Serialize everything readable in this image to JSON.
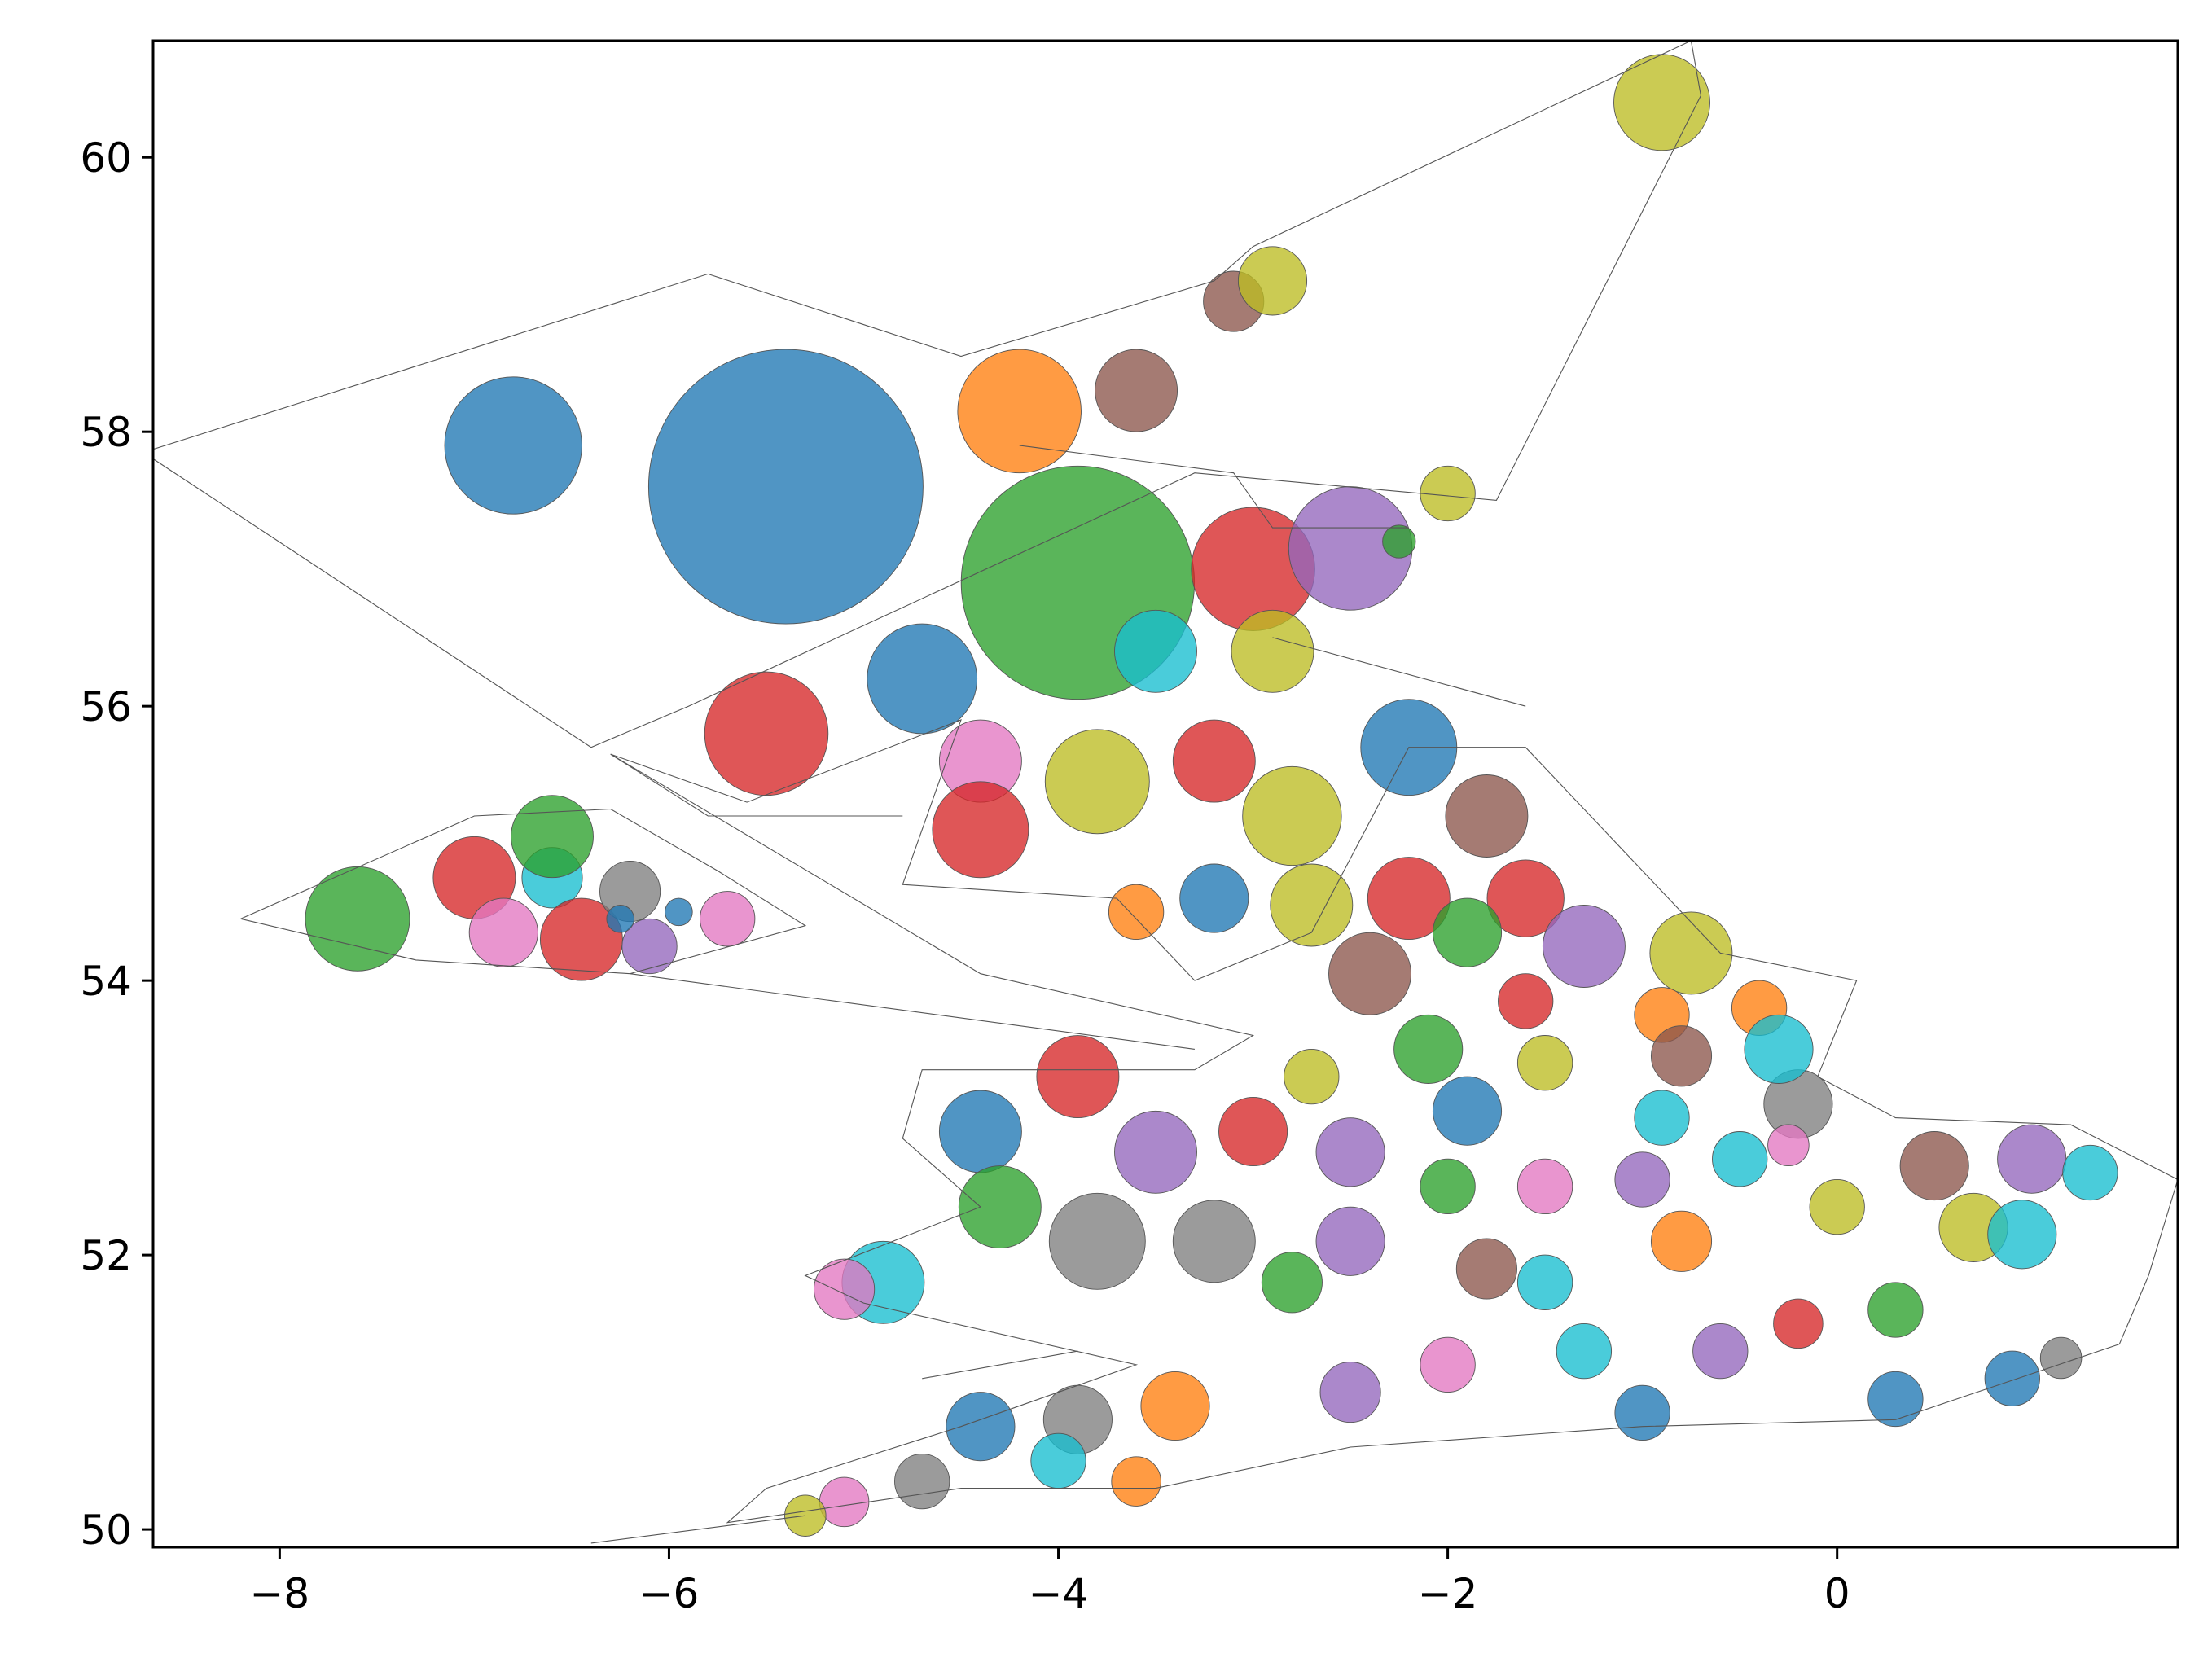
{
  "chart_data": {
    "type": "scatter",
    "title": "",
    "xlabel": "",
    "ylabel": "",
    "xlim": [
      -8.65,
      1.75
    ],
    "ylim": [
      49.87,
      60.85
    ],
    "xticks": [
      -8,
      -6,
      -4,
      -2,
      0
    ],
    "yticks": [
      50,
      52,
      54,
      56,
      58,
      60
    ],
    "xtick_labels": [
      "−8",
      "−6",
      "−4",
      "−2",
      "0"
    ],
    "ytick_labels": [
      "50",
      "52",
      "54",
      "56",
      "58",
      "60"
    ],
    "grid": false,
    "legend": "none",
    "background": "#ffffff",
    "outline_color": "#555555",
    "palette": [
      "#1f77b4",
      "#ff7f0e",
      "#2ca02c",
      "#d62728",
      "#9467bd",
      "#8c564b",
      "#e377c2",
      "#7f7f7f",
      "#bcbd22",
      "#17becf"
    ],
    "regions": [
      {
        "lon": -5.4,
        "lat": 57.6,
        "r": 1.0,
        "color": "#1f77b4"
      },
      {
        "lon": -6.8,
        "lat": 57.9,
        "r": 0.5,
        "color": "#1f77b4"
      },
      {
        "lon": -4.2,
        "lat": 58.15,
        "r": 0.45,
        "color": "#ff7f0e"
      },
      {
        "lon": -3.6,
        "lat": 58.3,
        "r": 0.3,
        "color": "#8c564b"
      },
      {
        "lon": -3.1,
        "lat": 58.95,
        "r": 0.22,
        "color": "#8c564b"
      },
      {
        "lon": -3.9,
        "lat": 56.9,
        "r": 0.85,
        "color": "#2ca02c"
      },
      {
        "lon": -3.0,
        "lat": 57.0,
        "r": 0.45,
        "color": "#d62728"
      },
      {
        "lon": -2.5,
        "lat": 57.15,
        "r": 0.45,
        "color": "#9467bd"
      },
      {
        "lon": -2.25,
        "lat": 57.2,
        "r": 0.12,
        "color": "#2ca02c"
      },
      {
        "lon": -2.0,
        "lat": 57.55,
        "r": 0.2,
        "color": "#bcbd22"
      },
      {
        "lon": -0.9,
        "lat": 60.4,
        "r": 0.35,
        "color": "#bcbd22"
      },
      {
        "lon": -2.9,
        "lat": 59.1,
        "r": 0.25,
        "color": "#bcbd22"
      },
      {
        "lon": -5.5,
        "lat": 55.8,
        "r": 0.45,
        "color": "#d62728"
      },
      {
        "lon": -4.7,
        "lat": 56.2,
        "r": 0.4,
        "color": "#1f77b4"
      },
      {
        "lon": -3.5,
        "lat": 56.4,
        "r": 0.3,
        "color": "#17becf"
      },
      {
        "lon": -2.9,
        "lat": 56.4,
        "r": 0.3,
        "color": "#bcbd22"
      },
      {
        "lon": -4.4,
        "lat": 55.6,
        "r": 0.3,
        "color": "#e377c2"
      },
      {
        "lon": -3.8,
        "lat": 55.45,
        "r": 0.38,
        "color": "#bcbd22"
      },
      {
        "lon": -2.8,
        "lat": 55.2,
        "r": 0.36,
        "color": "#bcbd22"
      },
      {
        "lon": -4.4,
        "lat": 55.1,
        "r": 0.35,
        "color": "#d62728"
      },
      {
        "lon": -3.2,
        "lat": 55.6,
        "r": 0.3,
        "color": "#d62728"
      },
      {
        "lon": -2.2,
        "lat": 55.7,
        "r": 0.35,
        "color": "#1f77b4"
      },
      {
        "lon": -1.8,
        "lat": 55.2,
        "r": 0.3,
        "color": "#8c564b"
      },
      {
        "lon": -2.7,
        "lat": 54.55,
        "r": 0.3,
        "color": "#bcbd22"
      },
      {
        "lon": -3.2,
        "lat": 54.6,
        "r": 0.25,
        "color": "#1f77b4"
      },
      {
        "lon": -3.6,
        "lat": 54.5,
        "r": 0.2,
        "color": "#ff7f0e"
      },
      {
        "lon": -2.2,
        "lat": 54.6,
        "r": 0.3,
        "color": "#d62728"
      },
      {
        "lon": -1.6,
        "lat": 54.6,
        "r": 0.28,
        "color": "#d62728"
      },
      {
        "lon": -7.6,
        "lat": 54.45,
        "r": 0.38,
        "color": "#2ca02c"
      },
      {
        "lon": -7.0,
        "lat": 54.75,
        "r": 0.3,
        "color": "#d62728"
      },
      {
        "lon": -6.6,
        "lat": 54.75,
        "r": 0.22,
        "color": "#17becf"
      },
      {
        "lon": -6.6,
        "lat": 55.05,
        "r": 0.3,
        "color": "#2ca02c"
      },
      {
        "lon": -6.85,
        "lat": 54.35,
        "r": 0.25,
        "color": "#e377c2"
      },
      {
        "lon": -6.45,
        "lat": 54.3,
        "r": 0.3,
        "color": "#d62728"
      },
      {
        "lon": -6.2,
        "lat": 54.65,
        "r": 0.22,
        "color": "#7f7f7f"
      },
      {
        "lon": -6.1,
        "lat": 54.25,
        "r": 0.2,
        "color": "#9467bd"
      },
      {
        "lon": -6.25,
        "lat": 54.45,
        "r": 0.1,
        "color": "#1f77b4"
      },
      {
        "lon": -5.95,
        "lat": 54.5,
        "r": 0.1,
        "color": "#1f77b4"
      },
      {
        "lon": -5.7,
        "lat": 54.45,
        "r": 0.2,
        "color": "#e377c2"
      },
      {
        "lon": -0.75,
        "lat": 54.2,
        "r": 0.3,
        "color": "#bcbd22"
      },
      {
        "lon": -1.3,
        "lat": 54.25,
        "r": 0.3,
        "color": "#9467bd"
      },
      {
        "lon": -1.9,
        "lat": 54.35,
        "r": 0.25,
        "color": "#2ca02c"
      },
      {
        "lon": -2.4,
        "lat": 54.05,
        "r": 0.3,
        "color": "#8c564b"
      },
      {
        "lon": -1.6,
        "lat": 53.85,
        "r": 0.2,
        "color": "#d62728"
      },
      {
        "lon": -0.9,
        "lat": 53.75,
        "r": 0.2,
        "color": "#ff7f0e"
      },
      {
        "lon": -0.4,
        "lat": 53.8,
        "r": 0.2,
        "color": "#ff7f0e"
      },
      {
        "lon": -0.2,
        "lat": 53.1,
        "r": 0.25,
        "color": "#7f7f7f"
      },
      {
        "lon": -0.3,
        "lat": 53.5,
        "r": 0.25,
        "color": "#17becf"
      },
      {
        "lon": -0.8,
        "lat": 53.45,
        "r": 0.22,
        "color": "#8c564b"
      },
      {
        "lon": -3.9,
        "lat": 53.3,
        "r": 0.3,
        "color": "#d62728"
      },
      {
        "lon": -4.4,
        "lat": 52.9,
        "r": 0.3,
        "color": "#1f77b4"
      },
      {
        "lon": -3.5,
        "lat": 52.75,
        "r": 0.3,
        "color": "#9467bd"
      },
      {
        "lon": -3.0,
        "lat": 52.9,
        "r": 0.25,
        "color": "#d62728"
      },
      {
        "lon": -2.5,
        "lat": 52.75,
        "r": 0.25,
        "color": "#9467bd"
      },
      {
        "lon": -1.9,
        "lat": 53.05,
        "r": 0.25,
        "color": "#1f77b4"
      },
      {
        "lon": -1.5,
        "lat": 53.4,
        "r": 0.2,
        "color": "#bcbd22"
      },
      {
        "lon": -2.1,
        "lat": 53.5,
        "r": 0.25,
        "color": "#2ca02c"
      },
      {
        "lon": -3.8,
        "lat": 52.1,
        "r": 0.35,
        "color": "#7f7f7f"
      },
      {
        "lon": -3.2,
        "lat": 52.1,
        "r": 0.3,
        "color": "#7f7f7f"
      },
      {
        "lon": -4.3,
        "lat": 52.35,
        "r": 0.3,
        "color": "#2ca02c"
      },
      {
        "lon": -4.9,
        "lat": 51.8,
        "r": 0.3,
        "color": "#17becf"
      },
      {
        "lon": -5.1,
        "lat": 51.75,
        "r": 0.22,
        "color": "#e377c2"
      },
      {
        "lon": -2.5,
        "lat": 52.1,
        "r": 0.25,
        "color": "#9467bd"
      },
      {
        "lon": -2.0,
        "lat": 52.5,
        "r": 0.2,
        "color": "#2ca02c"
      },
      {
        "lon": -1.5,
        "lat": 52.5,
        "r": 0.2,
        "color": "#e377c2"
      },
      {
        "lon": -1.0,
        "lat": 52.55,
        "r": 0.2,
        "color": "#9467bd"
      },
      {
        "lon": -0.5,
        "lat": 52.7,
        "r": 0.2,
        "color": "#17becf"
      },
      {
        "lon": -0.25,
        "lat": 52.8,
        "r": 0.15,
        "color": "#e377c2"
      },
      {
        "lon": 0.5,
        "lat": 52.65,
        "r": 0.25,
        "color": "#8c564b"
      },
      {
        "lon": 1.0,
        "lat": 52.7,
        "r": 0.25,
        "color": "#9467bd"
      },
      {
        "lon": 1.3,
        "lat": 52.6,
        "r": 0.2,
        "color": "#17becf"
      },
      {
        "lon": 0.7,
        "lat": 52.2,
        "r": 0.25,
        "color": "#bcbd22"
      },
      {
        "lon": 0.95,
        "lat": 52.15,
        "r": 0.25,
        "color": "#17becf"
      },
      {
        "lon": 0.0,
        "lat": 52.35,
        "r": 0.2,
        "color": "#bcbd22"
      },
      {
        "lon": -0.8,
        "lat": 52.1,
        "r": 0.22,
        "color": "#ff7f0e"
      },
      {
        "lon": -1.8,
        "lat": 51.9,
        "r": 0.22,
        "color": "#8c564b"
      },
      {
        "lon": -2.8,
        "lat": 51.8,
        "r": 0.22,
        "color": "#2ca02c"
      },
      {
        "lon": -0.2,
        "lat": 51.5,
        "r": 0.18,
        "color": "#d62728"
      },
      {
        "lon": 0.3,
        "lat": 51.6,
        "r": 0.2,
        "color": "#2ca02c"
      },
      {
        "lon": -0.6,
        "lat": 51.3,
        "r": 0.2,
        "color": "#9467bd"
      },
      {
        "lon": -1.3,
        "lat": 51.3,
        "r": 0.2,
        "color": "#17becf"
      },
      {
        "lon": -2.0,
        "lat": 51.2,
        "r": 0.2,
        "color": "#e377c2"
      },
      {
        "lon": -2.5,
        "lat": 51.0,
        "r": 0.22,
        "color": "#9467bd"
      },
      {
        "lon": -3.4,
        "lat": 50.9,
        "r": 0.25,
        "color": "#ff7f0e"
      },
      {
        "lon": -3.9,
        "lat": 50.8,
        "r": 0.25,
        "color": "#7f7f7f"
      },
      {
        "lon": -4.4,
        "lat": 50.75,
        "r": 0.25,
        "color": "#1f77b4"
      },
      {
        "lon": -4.0,
        "lat": 50.5,
        "r": 0.2,
        "color": "#17becf"
      },
      {
        "lon": -3.6,
        "lat": 50.35,
        "r": 0.18,
        "color": "#ff7f0e"
      },
      {
        "lon": -4.7,
        "lat": 50.35,
        "r": 0.2,
        "color": "#7f7f7f"
      },
      {
        "lon": -5.1,
        "lat": 50.2,
        "r": 0.18,
        "color": "#e377c2"
      },
      {
        "lon": -5.3,
        "lat": 50.1,
        "r": 0.15,
        "color": "#bcbd22"
      },
      {
        "lon": -1.0,
        "lat": 50.85,
        "r": 0.2,
        "color": "#1f77b4"
      },
      {
        "lon": 0.3,
        "lat": 50.95,
        "r": 0.2,
        "color": "#1f77b4"
      },
      {
        "lon": 0.9,
        "lat": 51.1,
        "r": 0.2,
        "color": "#1f77b4"
      },
      {
        "lon": 1.15,
        "lat": 51.25,
        "r": 0.15,
        "color": "#7f7f7f"
      },
      {
        "lon": -1.5,
        "lat": 51.8,
        "r": 0.2,
        "color": "#17becf"
      },
      {
        "lon": -0.9,
        "lat": 53.0,
        "r": 0.2,
        "color": "#17becf"
      },
      {
        "lon": -2.7,
        "lat": 53.3,
        "r": 0.2,
        "color": "#bcbd22"
      }
    ],
    "outlines": [
      [
        [
          -8.7,
          57.85
        ],
        [
          -5.8,
          59.15
        ],
        [
          -4.5,
          58.55
        ],
        [
          -3.2,
          59.1
        ],
        [
          -3.0,
          59.35
        ],
        [
          -0.75,
          60.85
        ],
        [
          -0.7,
          60.45
        ],
        [
          -1.75,
          57.5
        ],
        [
          -3.3,
          57.7
        ],
        [
          -5.9,
          56.0
        ],
        [
          -6.4,
          55.7
        ],
        [
          -8.7,
          57.85
        ]
      ],
      [
        [
          -8.2,
          54.45
        ],
        [
          -7.0,
          55.2
        ],
        [
          -6.3,
          55.25
        ],
        [
          -5.75,
          54.8
        ],
        [
          -5.3,
          54.4
        ],
        [
          -6.2,
          54.05
        ],
        [
          -7.3,
          54.15
        ],
        [
          -8.2,
          54.45
        ]
      ],
      [
        [
          -6.3,
          55.65
        ],
        [
          -5.6,
          55.3
        ],
        [
          -4.5,
          55.9
        ],
        [
          -4.8,
          54.7
        ],
        [
          -3.7,
          54.6
        ],
        [
          -3.3,
          54.0
        ],
        [
          -2.7,
          54.35
        ],
        [
          -2.2,
          55.7
        ],
        [
          -1.6,
          55.7
        ],
        [
          -0.6,
          54.2
        ],
        [
          0.1,
          54.0
        ],
        [
          -0.1,
          53.3
        ],
        [
          0.3,
          53.0
        ],
        [
          1.2,
          52.95
        ],
        [
          1.75,
          52.55
        ],
        [
          1.6,
          51.85
        ],
        [
          1.45,
          51.35
        ],
        [
          0.3,
          50.8
        ],
        [
          -1.0,
          50.75
        ],
        [
          -2.5,
          50.6
        ],
        [
          -3.5,
          50.3
        ],
        [
          -4.5,
          50.3
        ],
        [
          -5.7,
          50.05
        ],
        [
          -5.5,
          50.3
        ],
        [
          -4.5,
          50.75
        ],
        [
          -3.6,
          51.2
        ],
        [
          -5.0,
          51.65
        ],
        [
          -5.3,
          51.85
        ],
        [
          -4.4,
          52.35
        ],
        [
          -4.8,
          52.85
        ],
        [
          -4.7,
          53.35
        ],
        [
          -3.3,
          53.35
        ],
        [
          -3.0,
          53.6
        ],
        [
          -4.4,
          54.05
        ],
        [
          -6.3,
          55.65
        ]
      ],
      [
        [
          -6.2,
          54.05
        ],
        [
          -3.3,
          53.5
        ]
      ],
      [
        [
          -6.3,
          55.65
        ],
        [
          -5.8,
          55.2
        ],
        [
          -4.8,
          55.2
        ]
      ],
      [
        [
          -2.9,
          56.5
        ],
        [
          -1.6,
          56.0
        ]
      ],
      [
        [
          -6.4,
          49.9
        ],
        [
          -5.3,
          50.1
        ]
      ],
      [
        [
          -4.7,
          51.1
        ],
        [
          -3.9,
          51.3
        ]
      ],
      [
        [
          -4.2,
          57.9
        ],
        [
          -3.1,
          57.7
        ],
        [
          -2.9,
          57.3
        ],
        [
          -2.2,
          57.3
        ]
      ]
    ]
  }
}
